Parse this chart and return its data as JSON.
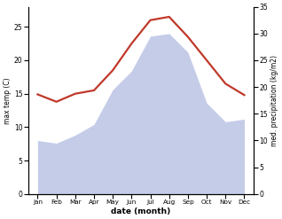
{
  "months": [
    "Jan",
    "Feb",
    "Mar",
    "Apr",
    "May",
    "Jun",
    "Jul",
    "Aug",
    "Sep",
    "Oct",
    "Nov",
    "Dec"
  ],
  "month_x": [
    0,
    1,
    2,
    3,
    4,
    5,
    6,
    7,
    8,
    9,
    10,
    11
  ],
  "temp": [
    14.9,
    13.8,
    15.0,
    15.5,
    18.5,
    22.5,
    26.0,
    26.5,
    23.5,
    20.0,
    16.5,
    14.8
  ],
  "precip": [
    10.0,
    9.5,
    11.0,
    13.0,
    19.5,
    23.0,
    29.5,
    30.0,
    26.5,
    17.0,
    13.5,
    14.0
  ],
  "temp_color": "#c0392b",
  "precip_fill_color": "#c5cce8",
  "temp_ylim": [
    0,
    28
  ],
  "precip_ylim": [
    0,
    35
  ],
  "temp_yticks": [
    0,
    5,
    10,
    15,
    20,
    25
  ],
  "precip_yticks": [
    0,
    5,
    10,
    15,
    20,
    25,
    30,
    35
  ],
  "ylabel_left": "max temp (C)",
  "ylabel_right": "med. precipitation (kg/m2)",
  "xlabel": "date (month)",
  "bg_color": "#ffffff",
  "line_width": 1.6
}
